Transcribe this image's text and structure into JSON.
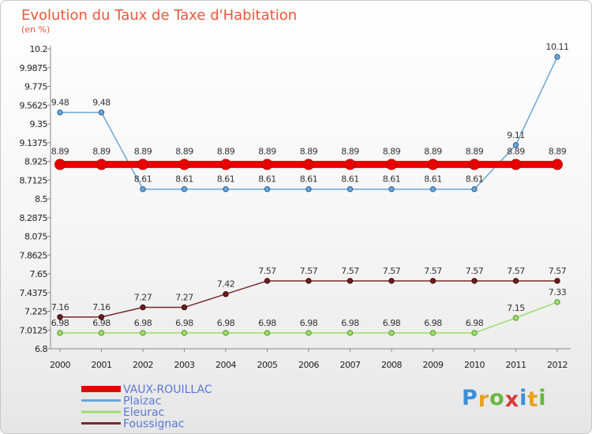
{
  "chart_data": {
    "type": "line",
    "title": "Evolution du Taux de Taxe d'Habitation",
    "subtitle": "(en %)",
    "xlabel": "",
    "ylabel": "",
    "ylim": [
      6.8,
      10.2
    ],
    "y_ticks": [
      "10.2",
      "9.9875",
      "9.775",
      "9.5625",
      "9.35",
      "9.1375",
      "8.925",
      "8.7125",
      "8.5",
      "8.2875",
      "8.075",
      "7.8625",
      "7.65",
      "7.4375",
      "7.225",
      "7.0125",
      "6.8"
    ],
    "categories": [
      "2000",
      "2001",
      "2002",
      "2003",
      "2004",
      "2005",
      "2006",
      "2007",
      "2008",
      "2009",
      "2010",
      "2011",
      "2012"
    ],
    "series": [
      {
        "name": "VAUX-ROUILLAC",
        "color": "#e80000",
        "values": [
          8.89,
          8.89,
          8.89,
          8.89,
          8.89,
          8.89,
          8.89,
          8.89,
          8.89,
          8.89,
          8.89,
          8.89,
          8.89
        ],
        "labels": [
          "8.89",
          "8.89",
          "8.89",
          "8.89",
          "8.89",
          "8.89",
          "8.89",
          "8.89",
          "8.89",
          "8.89",
          "8.89",
          "8.89",
          "8.89"
        ]
      },
      {
        "name": "Plaizac",
        "color": "#6aa6d6",
        "values": [
          9.48,
          9.48,
          8.61,
          8.61,
          8.61,
          8.61,
          8.61,
          8.61,
          8.61,
          8.61,
          8.61,
          9.11,
          10.11
        ],
        "labels": [
          "9.48",
          "9.48",
          "8.61",
          "8.61",
          "8.61",
          "8.61",
          "8.61",
          "8.61",
          "8.61",
          "8.61",
          "8.61",
          "9.11",
          "10.11"
        ]
      },
      {
        "name": "Eleurac",
        "color": "#9fdc6e",
        "values": [
          6.98,
          6.98,
          6.98,
          6.98,
          6.98,
          6.98,
          6.98,
          6.98,
          6.98,
          6.98,
          6.98,
          7.15,
          7.33
        ],
        "labels": [
          "6.98",
          "6.98",
          "6.98",
          "6.98",
          "6.98",
          "6.98",
          "6.98",
          "6.98",
          "6.98",
          "6.98",
          "6.98",
          "7.15",
          "7.33"
        ]
      },
      {
        "name": "Foussignac",
        "color": "#7a2a2a",
        "values": [
          7.16,
          7.16,
          7.27,
          7.27,
          7.42,
          7.57,
          7.57,
          7.57,
          7.57,
          7.57,
          7.57,
          7.57,
          7.57
        ],
        "labels": [
          "7.16",
          "7.16",
          "7.27",
          "7.27",
          "7.42",
          "7.57",
          "7.57",
          "7.57",
          "7.57",
          "7.57",
          "7.57",
          "7.57",
          "7.57"
        ]
      }
    ],
    "legend_position": "bottom-left",
    "grid": false
  },
  "logo": {
    "letters": [
      "P",
      "r",
      "o",
      "x",
      "i",
      "t",
      "i"
    ],
    "colors": [
      "#3a8fd8",
      "#e8a020",
      "#68b840",
      "#d83a3a",
      "#3a8fd8",
      "#e8a020",
      "#68b840"
    ]
  }
}
